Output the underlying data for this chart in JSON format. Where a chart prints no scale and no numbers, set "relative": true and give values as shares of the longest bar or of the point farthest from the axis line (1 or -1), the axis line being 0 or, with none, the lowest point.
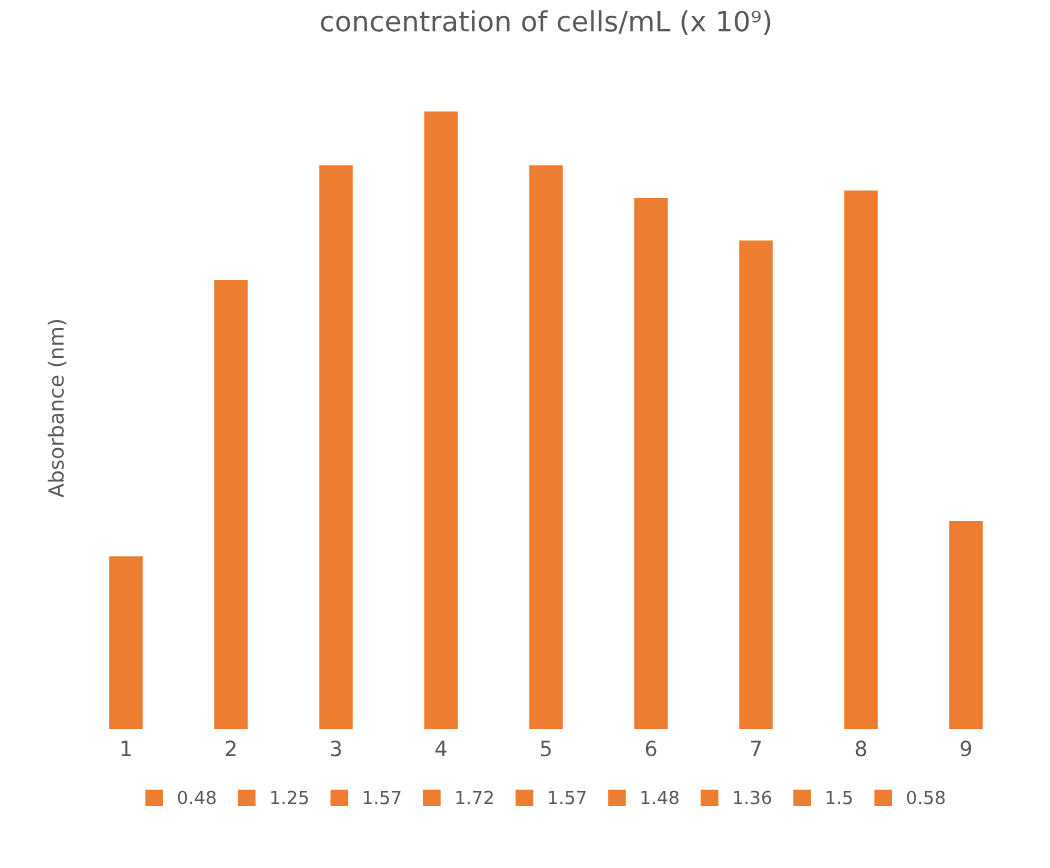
{
  "chart_data": {
    "type": "bar",
    "title": "concentration of cells/mL (x 10⁹)",
    "ylabel": "Absorbance (nm)",
    "categories": [
      "1",
      "2",
      "3",
      "4",
      "5",
      "6",
      "7",
      "8",
      "9"
    ],
    "series": [
      {
        "name": "0.48",
        "color": "#ed7d31",
        "values": [
          0.28,
          null,
          null,
          null,
          null,
          null,
          null,
          null,
          null
        ]
      },
      {
        "name": "1.25",
        "color": "#ed7d31",
        "values": [
          null,
          0.727,
          null,
          null,
          null,
          null,
          null,
          null,
          null
        ]
      },
      {
        "name": "1.57",
        "color": "#ed7d31",
        "values": [
          null,
          null,
          0.913,
          null,
          null,
          null,
          null,
          null,
          null
        ]
      },
      {
        "name": "1.72",
        "color": "#ed7d31",
        "values": [
          null,
          null,
          null,
          1,
          null,
          null,
          null,
          null,
          null
        ]
      },
      {
        "name": "1.57",
        "color": "#ed7d31",
        "values": [
          null,
          null,
          null,
          null,
          0.913,
          null,
          null,
          null,
          null
        ]
      },
      {
        "name": "1.48",
        "color": "#ed7d31",
        "values": [
          null,
          null,
          null,
          null,
          null,
          0.86,
          null,
          null,
          null
        ]
      },
      {
        "name": "1.36",
        "color": "#ed7d31",
        "values": [
          null,
          null,
          null,
          null,
          null,
          null,
          0.791,
          null,
          null
        ]
      },
      {
        "name": "1.5",
        "color": "#ed7d31",
        "values": [
          null,
          null,
          null,
          null,
          null,
          null,
          null,
          0.872,
          null
        ]
      },
      {
        "name": "0.58",
        "color": "#ed7d31",
        "values": [
          null,
          null,
          null,
          null,
          null,
          null,
          null,
          null,
          0.337
        ]
      }
    ],
    "legend": "bottom",
    "grid": false,
    "relative": true
  }
}
